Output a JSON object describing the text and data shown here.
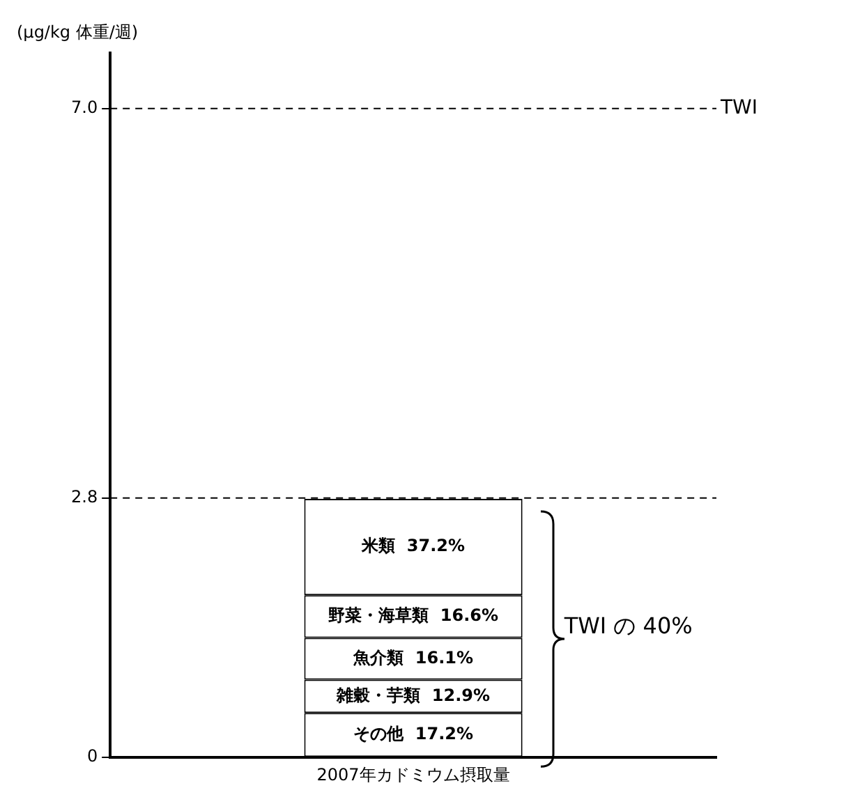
{
  "chart_data": {
    "type": "bar",
    "stacked": true,
    "ylabel": "(μg/kg 体重/週)",
    "categories": [
      "2007年カドミウム摂取量"
    ],
    "series": [
      {
        "name": "その他  17.2%",
        "color": "#ffffff",
        "values": [
          0.48
        ]
      },
      {
        "name": "雑穀・芋類  12.9%",
        "color": "#ffffff",
        "values": [
          0.36
        ]
      },
      {
        "name": "魚介類  16.1%",
        "color": "#ffffff",
        "values": [
          0.45
        ]
      },
      {
        "name": "野菜・海草類  16.6%",
        "color": "#ffffff",
        "values": [
          0.46
        ]
      },
      {
        "name": "米類  37.2%",
        "color": "#ffffff",
        "values": [
          1.04
        ]
      }
    ],
    "ylim": [
      0,
      7.6
    ],
    "yticks": [
      0,
      {
        "value": 2.8,
        "label": "2.8"
      },
      {
        "value": 7,
        "label": "7.0"
      }
    ],
    "ref_lines": [
      {
        "axis": "y",
        "value": 7,
        "label": "TWI",
        "line_style": "dashed"
      },
      {
        "axis": "y",
        "value": 2.8,
        "label": null,
        "line_style": "dashed"
      }
    ],
    "annotations": [
      "TWI の 40%"
    ],
    "grid": false,
    "legend": false
  }
}
